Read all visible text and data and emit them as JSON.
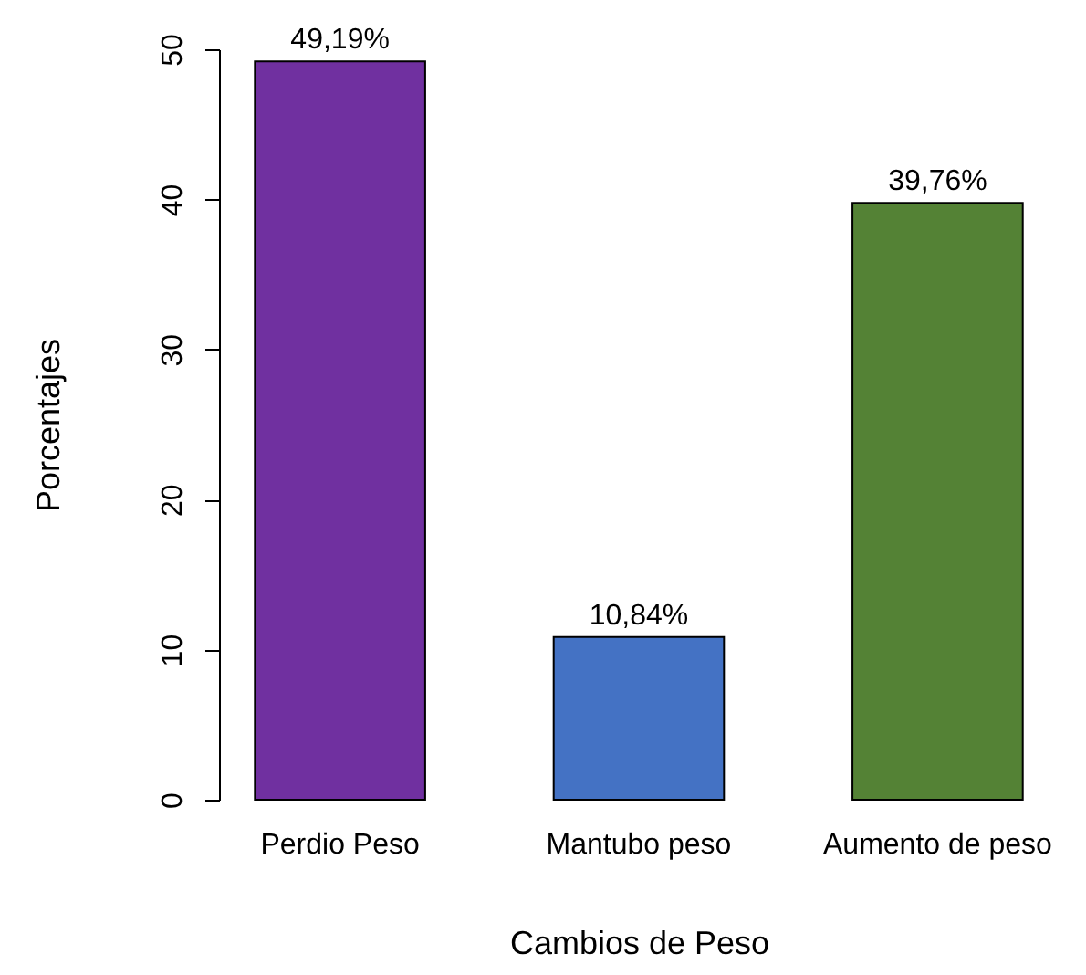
{
  "chart_data": {
    "type": "bar",
    "xlabel": "Cambios de Peso",
    "ylabel": "Porcentajes",
    "categories": [
      "Perdio Peso",
      "Mantubo peso",
      "Aumento de peso"
    ],
    "values": [
      49.19,
      10.84,
      39.76
    ],
    "colors": [
      "#7030a0",
      "#4472c4",
      "#548235"
    ],
    "value_labels": [
      "49,19%",
      "10,84%",
      "39,76%"
    ],
    "ylim": [
      0,
      50
    ],
    "yticks": [
      0,
      10,
      20,
      30,
      40,
      50
    ]
  }
}
